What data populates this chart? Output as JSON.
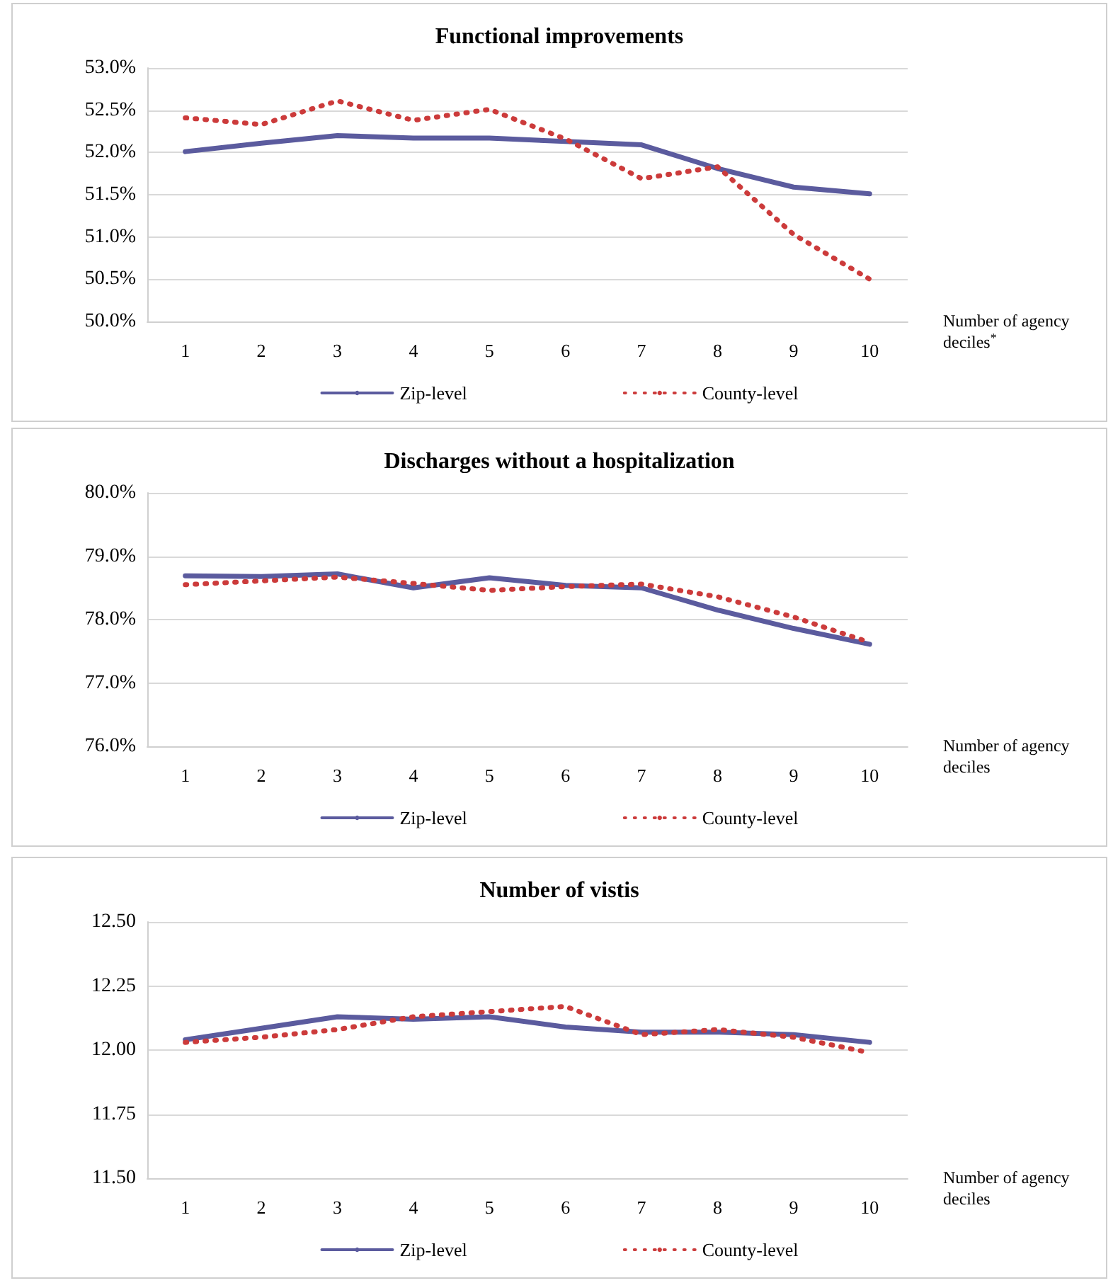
{
  "chart_data": [
    {
      "type": "line",
      "title": "Functional improvements",
      "xlabel": "Number of agency deciles$^{*}$",
      "categories": [
        "1",
        "2",
        "3",
        "4",
        "5",
        "6",
        "7",
        "8",
        "9",
        "10"
      ],
      "series": [
        {
          "name": "Zip-level",
          "color": "#5b5b9e",
          "line_style": "solid",
          "values": [
            52.01,
            52.11,
            52.2,
            52.17,
            52.17,
            52.13,
            52.09,
            51.81,
            51.59,
            51.51
          ]
        },
        {
          "name": "County-level",
          "color": "#cc3b3b",
          "line_style": "dotted",
          "values": [
            52.41,
            52.33,
            52.61,
            52.38,
            52.51,
            52.16,
            51.69,
            51.83,
            51.03,
            50.5
          ]
        }
      ],
      "ylim": [
        50,
        53
      ],
      "yticks": [
        {
          "value": 50,
          "label": "50.0%"
        },
        {
          "value": 50.5,
          "label": "50.5%"
        },
        {
          "value": 51,
          "label": "51.0%"
        },
        {
          "value": 51.5,
          "label": "51.5%"
        },
        {
          "value": 52,
          "label": "52.0%"
        },
        {
          "value": 52.5,
          "label": "52.5%"
        },
        {
          "value": 53,
          "label": "53.0%"
        }
      ],
      "grid": "y",
      "legend": "bottom",
      "marker": "none"
    },
    {
      "type": "line",
      "title": "Discharges without a hospitalization",
      "xlabel": "Number of agency deciles",
      "categories": [
        "1",
        "2",
        "3",
        "4",
        "5",
        "6",
        "7",
        "8",
        "9",
        "10"
      ],
      "series": [
        {
          "name": "Zip-level",
          "color": "#5b5b9e",
          "line_style": "solid",
          "values": [
            78.69,
            78.68,
            78.72,
            78.5,
            78.66,
            78.54,
            78.5,
            78.15,
            77.86,
            77.61
          ]
        },
        {
          "name": "County-level",
          "color": "#cc3b3b",
          "line_style": "dotted",
          "values": [
            78.55,
            78.61,
            78.67,
            78.57,
            78.46,
            78.52,
            78.56,
            78.36,
            78.04,
            77.64
          ]
        }
      ],
      "ylim": [
        76,
        80
      ],
      "yticks": [
        {
          "value": 76,
          "label": "76.0%"
        },
        {
          "value": 77,
          "label": "77.0%"
        },
        {
          "value": 78,
          "label": "78.0%"
        },
        {
          "value": 79,
          "label": "79.0%"
        },
        {
          "value": 80,
          "label": "80.0%"
        }
      ],
      "grid": "y",
      "legend": "bottom",
      "marker": "none"
    },
    {
      "type": "line",
      "title": "Number of vistis",
      "xlabel": "Number of agency deciles",
      "categories": [
        "1",
        "2",
        "3",
        "4",
        "5",
        "6",
        "7",
        "8",
        "9",
        "10"
      ],
      "series": [
        {
          "name": "Zip-level",
          "color": "#5b5b9e",
          "line_style": "solid",
          "values": [
            12.04,
            12.085,
            12.13,
            12.12,
            12.13,
            12.09,
            12.07,
            12.07,
            12.06,
            12.03
          ]
        },
        {
          "name": "County-level",
          "color": "#cc3b3b",
          "line_style": "dotted",
          "values": [
            12.03,
            12.05,
            12.08,
            12.13,
            12.15,
            12.17,
            12.06,
            12.08,
            12.05,
            11.99
          ]
        }
      ],
      "ylim": [
        11.5,
        12.5
      ],
      "yticks": [
        {
          "value": 11.5,
          "label": "11.50"
        },
        {
          "value": 11.75,
          "label": "11.75"
        },
        {
          "value": 12,
          "label": "12.00"
        },
        {
          "value": 12.25,
          "label": "12.25"
        },
        {
          "value": 12.5,
          "label": "12.50"
        }
      ],
      "grid": "y",
      "legend": "bottom",
      "marker": "none"
    }
  ]
}
